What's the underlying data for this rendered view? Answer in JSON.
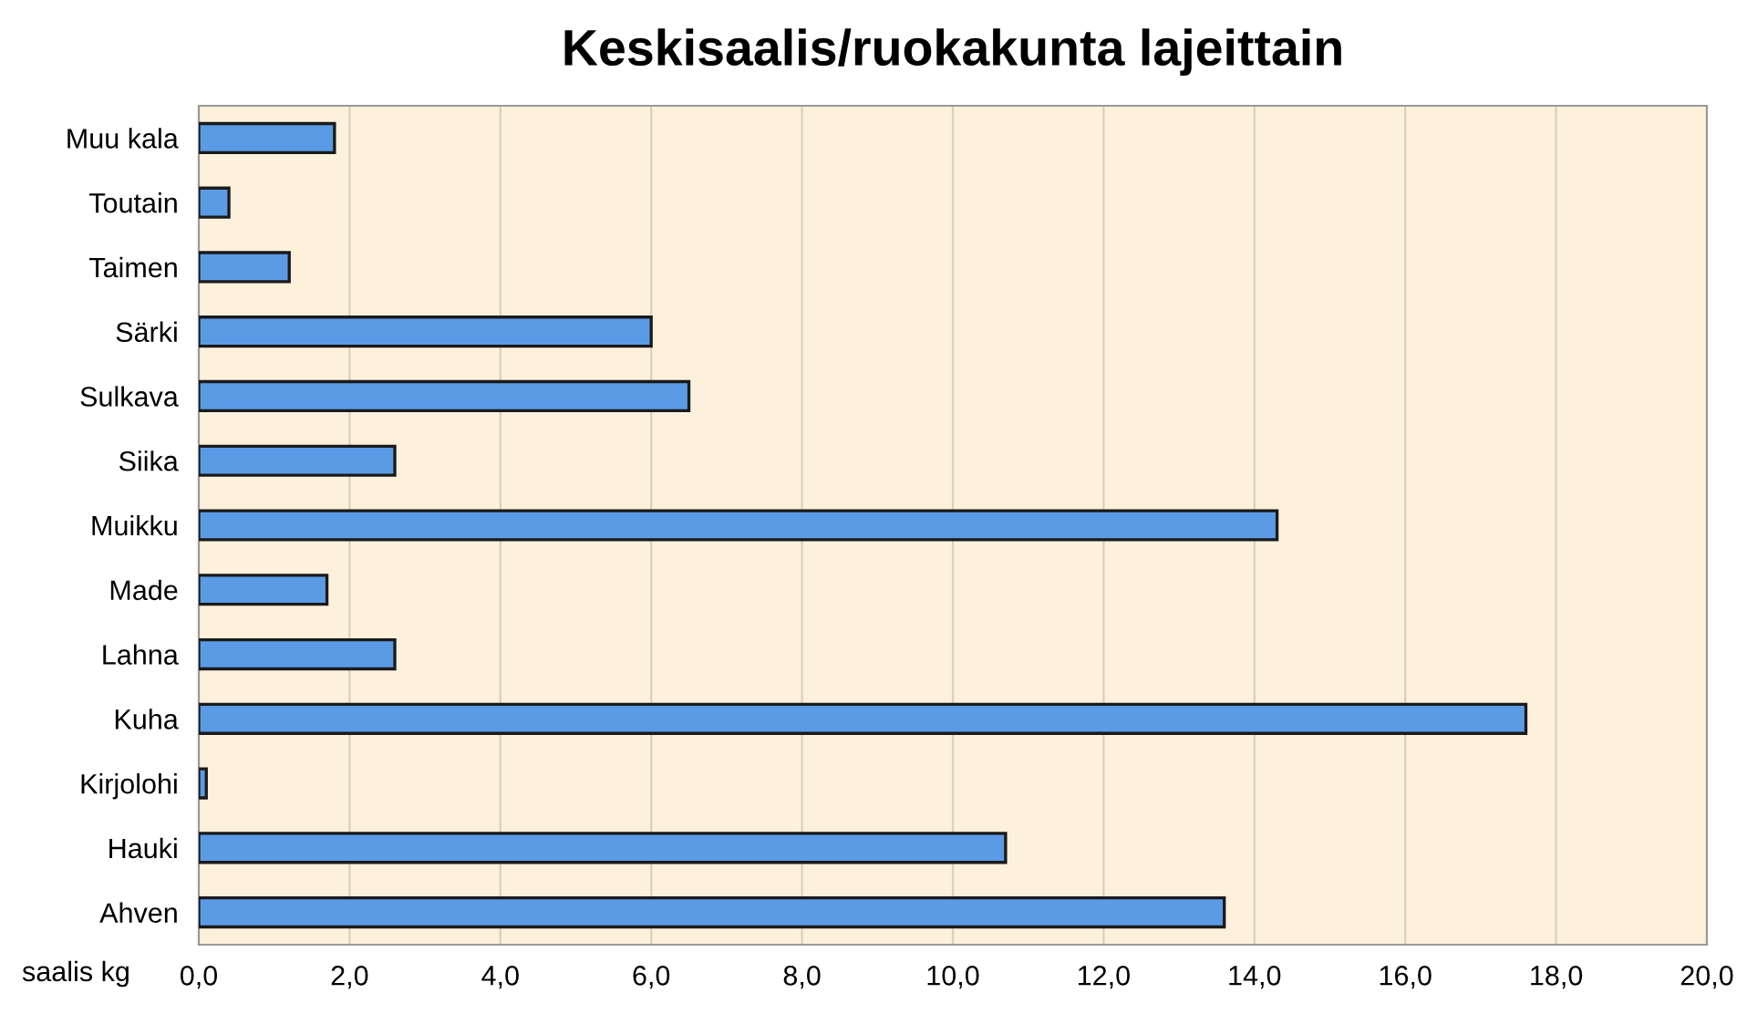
{
  "chart_data": {
    "type": "bar",
    "orientation": "horizontal",
    "title": "Keskisaalis/ruokakunta lajeittain",
    "xlabel": "saalis kg",
    "categories": [
      "Muu kala",
      "Toutain",
      "Taimen",
      "Särki",
      "Sulkava",
      "Siika",
      "Muikku",
      "Made",
      "Lahna",
      "Kuha",
      "Kirjolohi",
      "Hauki",
      "Ahven"
    ],
    "values": [
      1.8,
      0.4,
      1.2,
      6.0,
      6.5,
      2.6,
      14.3,
      1.7,
      2.6,
      17.6,
      0.1,
      10.7,
      13.6
    ],
    "color": "#5b9be6",
    "xlim": [
      0,
      20
    ],
    "xticks": [
      {
        "value": 0,
        "label": "0,0"
      },
      {
        "value": 2,
        "label": "2,0"
      },
      {
        "value": 4,
        "label": "4,0"
      },
      {
        "value": 6,
        "label": "6,0"
      },
      {
        "value": 8,
        "label": "8,0"
      },
      {
        "value": 10,
        "label": "10,0"
      },
      {
        "value": 12,
        "label": "12,0"
      },
      {
        "value": 14,
        "label": "14,0"
      },
      {
        "value": 16,
        "label": "16,0"
      },
      {
        "value": 18,
        "label": "18,0"
      },
      {
        "value": 20,
        "label": "20,0"
      }
    ],
    "grid": "x"
  }
}
